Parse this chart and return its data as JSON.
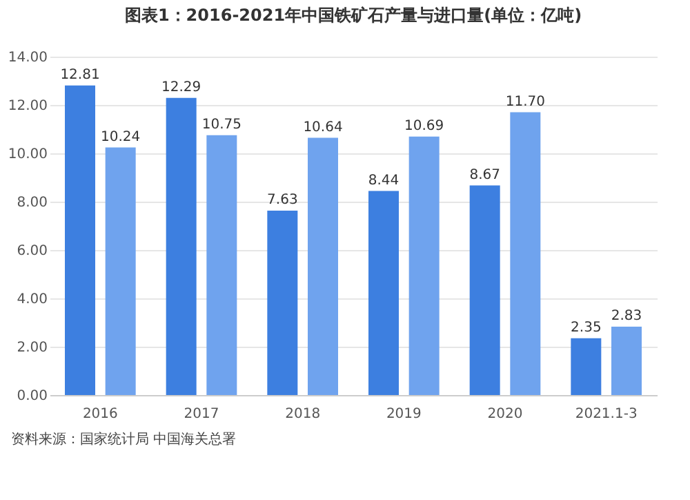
{
  "chart_data": {
    "type": "bar",
    "title": "图表1：2016-2021年中国铁矿石产量与进口量(单位：亿吨)",
    "categories": [
      "2016",
      "2017",
      "2018",
      "2019",
      "2020",
      "2021.1-3"
    ],
    "series": [
      {
        "color": "#3d7fe0",
        "values": [
          12.81,
          12.29,
          7.63,
          8.44,
          8.67,
          2.35
        ],
        "value_labels": [
          "12.81",
          "12.29",
          "7.63",
          "8.44",
          "8.67",
          "2.35"
        ]
      },
      {
        "color": "#6fa3ee",
        "values": [
          10.24,
          10.75,
          10.64,
          10.69,
          11.7,
          2.83
        ],
        "value_labels": [
          "10.24",
          "10.75",
          "10.64",
          "10.69",
          "11.70",
          "2.83"
        ]
      }
    ],
    "ylim": [
      0,
      14
    ],
    "yticks": [
      {
        "value": 0,
        "label": "0.00"
      },
      {
        "value": 2,
        "label": "2.00"
      },
      {
        "value": 4,
        "label": "4.00"
      },
      {
        "value": 6,
        "label": "6.00"
      },
      {
        "value": 8,
        "label": "8.00"
      },
      {
        "value": 10,
        "label": "10.00"
      },
      {
        "value": 12,
        "label": "12.00"
      },
      {
        "value": 14,
        "label": "14.00"
      }
    ],
    "grid": "y",
    "annotations": [
      "资料来源：国家统计局 中国海关总署"
    ]
  }
}
